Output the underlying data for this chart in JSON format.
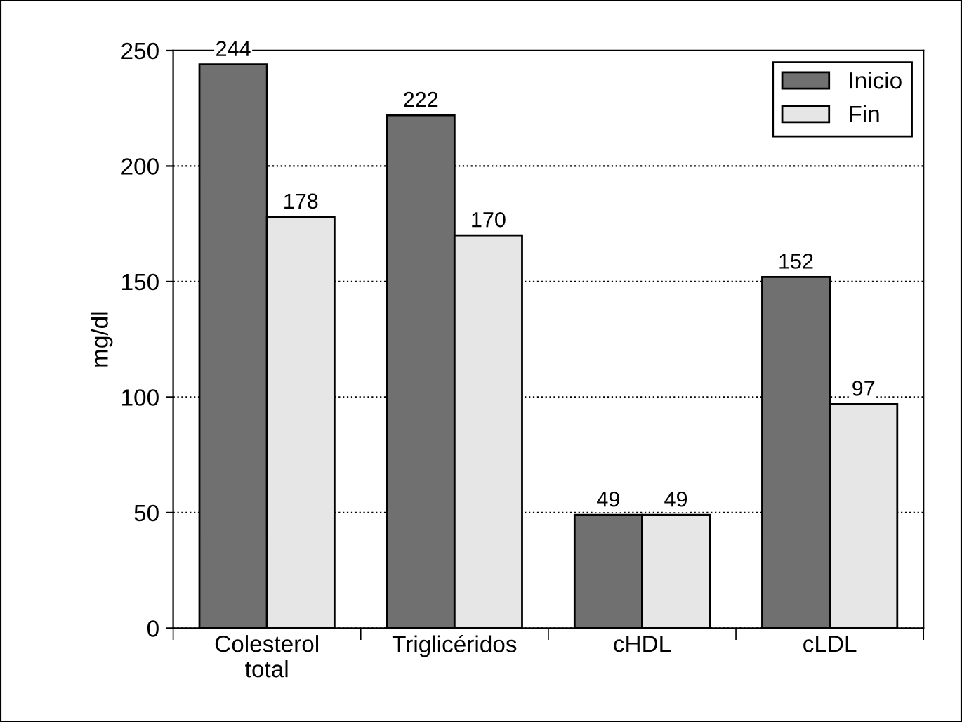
{
  "chart_data": {
    "type": "bar",
    "ylabel": "mg/dl",
    "categories": [
      "Colesterol\ntotal",
      "Triglicéridos",
      "cHDL",
      "cLDL"
    ],
    "series": [
      {
        "name": "Inicio",
        "color": "#707070",
        "values": [
          244,
          222,
          49,
          152
        ]
      },
      {
        "name": "Fin",
        "color": "#e6e6e6",
        "values": [
          178,
          170,
          49,
          97
        ]
      }
    ],
    "ylim": [
      0,
      250
    ],
    "yticks": [
      0,
      50,
      100,
      150,
      200,
      250
    ],
    "grid": "y",
    "line_style": "dotted",
    "legend": "top right",
    "data_labels": true
  }
}
